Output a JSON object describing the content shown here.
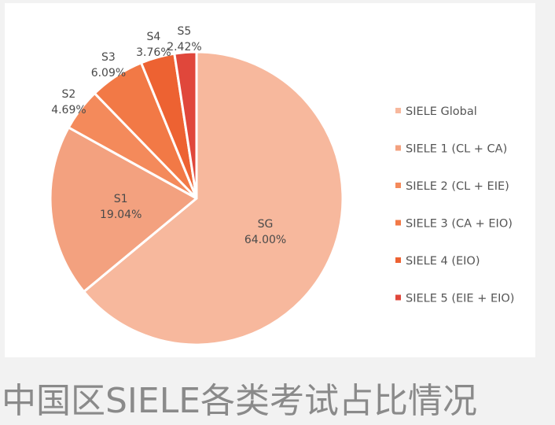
{
  "caption": "中国区SIELE各类考试占比情况",
  "chart_data": {
    "type": "pie",
    "slices": [
      {
        "short": "SG",
        "name": "SIELE Global",
        "value": 64.0,
        "label": "64.00%",
        "color": "#f7b89d"
      },
      {
        "short": "S1",
        "name": "SIELE 1 (CL + CA)",
        "value": 19.04,
        "label": "19.04%",
        "color": "#f3a17f"
      },
      {
        "short": "S2",
        "name": "SIELE 2 (CL + EIE)",
        "value": 4.69,
        "label": "4.69%",
        "color": "#f48a5b"
      },
      {
        "short": "S3",
        "name": "SIELE 3 (CA + EIO)",
        "value": 6.09,
        "label": "6.09%",
        "color": "#f27946"
      },
      {
        "short": "S4",
        "name": "SIELE 4 (EIO)",
        "value": 3.76,
        "label": "3.76%",
        "color": "#ed6232"
      },
      {
        "short": "S5",
        "name": "SIELE 5 (EIE + EIO)",
        "value": 2.42,
        "label": "2.42%",
        "color": "#e0473b"
      }
    ],
    "legend_position": "right",
    "start_angle": "12 o'clock",
    "direction": "clockwise"
  }
}
